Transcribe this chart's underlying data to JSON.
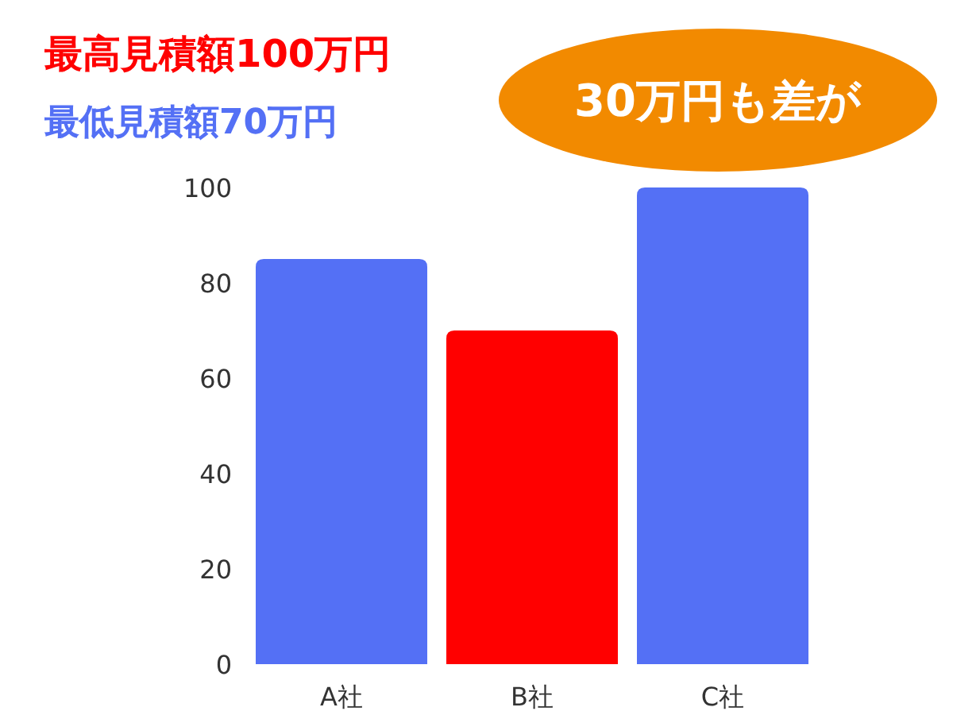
{
  "chart_data": {
    "type": "bar",
    "title": "最高見積額100万円",
    "subtitle": "最低見積額70万円",
    "annotations": [
      "30万円も差が"
    ],
    "categories": [
      "A社",
      "B社",
      "C社"
    ],
    "values": [
      85,
      70,
      100
    ],
    "colors": [
      "#5470f5",
      "#ff0000",
      "#5470f5"
    ],
    "ylim": [
      0,
      100
    ],
    "yticks": [
      0,
      20,
      40,
      60,
      80,
      100
    ],
    "grid": false
  }
}
